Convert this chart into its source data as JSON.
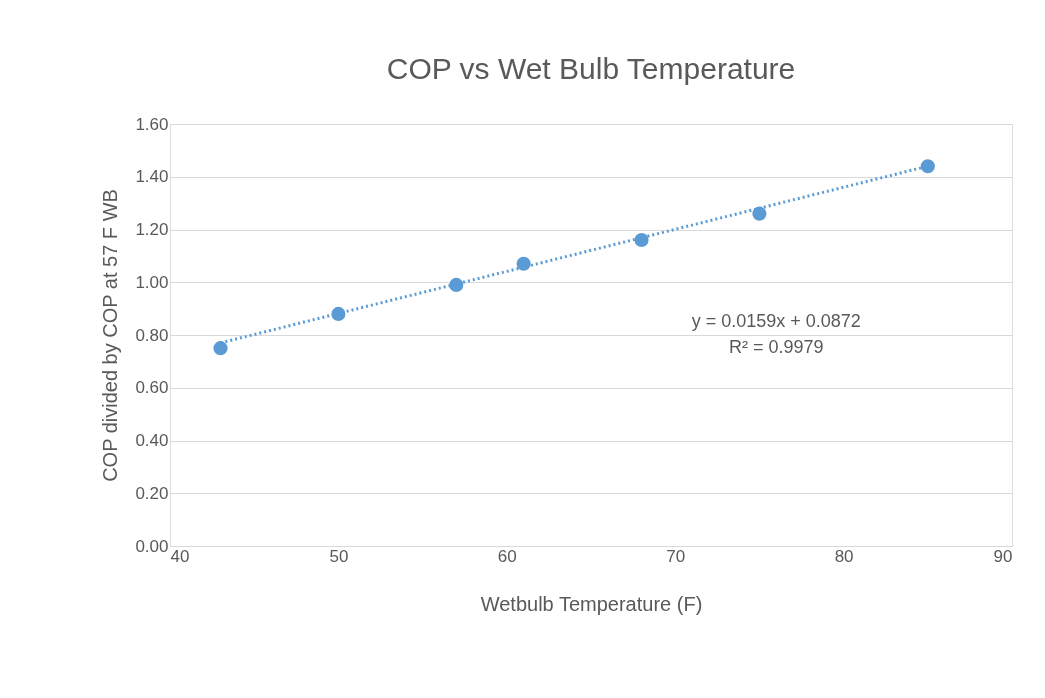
{
  "chart_data": {
    "type": "scatter",
    "title": "COP vs Wet Bulb Temperature",
    "xlabel": "Wetbulb Temperature (F)",
    "ylabel": "COP divided by COP at 57 F WB",
    "x": [
      43,
      50,
      57,
      61,
      68,
      75,
      85
    ],
    "series": [
      {
        "color": "#5b9bd5",
        "marker": "circle",
        "values": [
          0.75,
          0.88,
          0.99,
          1.07,
          1.16,
          1.26,
          1.44
        ]
      },
      {
        "type": "line",
        "color": "#5b9bd5",
        "line_style": "dotted",
        "x": [
          43,
          85
        ],
        "values": [
          0.77,
          1.44
        ]
      }
    ],
    "xlim": [
      40,
      90
    ],
    "xticks": [
      40,
      50,
      60,
      70,
      80,
      90
    ],
    "ylim": [
      0,
      1.6
    ],
    "yticks": [
      {
        "value": 0,
        "label": "0.00"
      },
      {
        "value": 0.2,
        "label": "0.20"
      },
      {
        "value": 0.4,
        "label": "0.40"
      },
      {
        "value": 0.6,
        "label": "0.60"
      },
      {
        "value": 0.8,
        "label": "0.80"
      },
      {
        "value": 1.0,
        "label": "1.00"
      },
      {
        "value": 1.2,
        "label": "1.20"
      },
      {
        "value": 1.4,
        "label": "1.40"
      },
      {
        "value": 1.6,
        "label": "1.60"
      }
    ],
    "annotations": [
      "y = 0.0159x + 0.0872",
      "R² = 0.9979"
    ],
    "grid": "y"
  }
}
